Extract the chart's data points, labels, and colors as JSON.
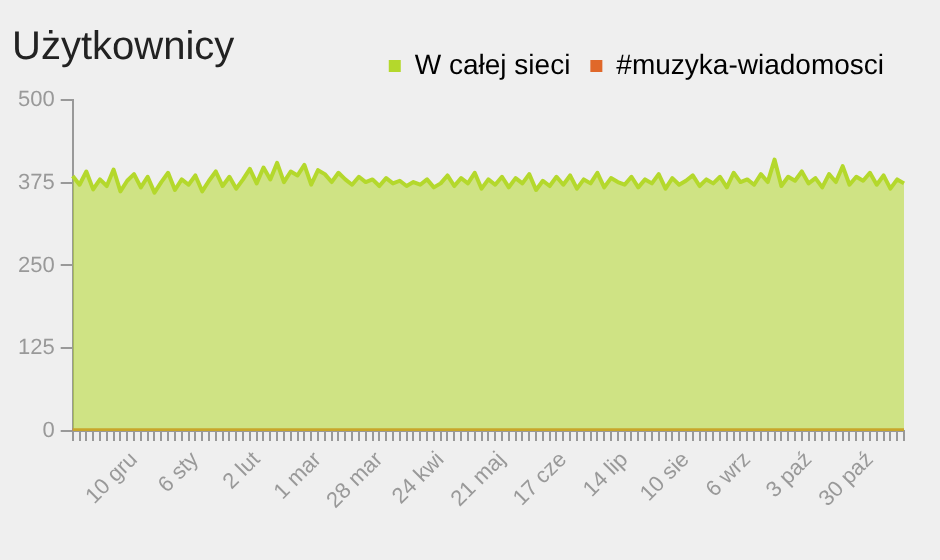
{
  "chart_data": {
    "type": "area",
    "title": "Użytkownicy",
    "categories": [
      null,
      null,
      null,
      null,
      null,
      null,
      null,
      null,
      null,
      "10 gru",
      null,
      null,
      null,
      null,
      null,
      null,
      null,
      null,
      "6 sty",
      null,
      null,
      null,
      null,
      null,
      null,
      null,
      null,
      "2 lut",
      null,
      null,
      null,
      null,
      null,
      null,
      null,
      null,
      "1 mar",
      null,
      null,
      null,
      null,
      null,
      null,
      null,
      null,
      "28 mar",
      null,
      null,
      null,
      null,
      null,
      null,
      null,
      null,
      "24 kwi",
      null,
      null,
      null,
      null,
      null,
      null,
      null,
      null,
      "21 maj",
      null,
      null,
      null,
      null,
      null,
      null,
      null,
      null,
      "17 cze",
      null,
      null,
      null,
      null,
      null,
      null,
      null,
      null,
      "14 lip",
      null,
      null,
      null,
      null,
      null,
      null,
      null,
      null,
      "10 sie",
      null,
      null,
      null,
      null,
      null,
      null,
      null,
      null,
      "6 wrz",
      null,
      null,
      null,
      null,
      null,
      null,
      null,
      null,
      "3 paź",
      null,
      null,
      null,
      null,
      null,
      null,
      null,
      null,
      "30 paź",
      null,
      null,
      null,
      null,
      null
    ],
    "series": [
      {
        "name": "W całej sieci",
        "color": "#b4d82c",
        "values": [
          385,
          372,
          392,
          365,
          380,
          370,
          395,
          362,
          378,
          388,
          368,
          384,
          360,
          376,
          390,
          364,
          380,
          372,
          386,
          362,
          378,
          392,
          370,
          384,
          366,
          380,
          396,
          374,
          398,
          380,
          405,
          376,
          392,
          386,
          402,
          372,
          394,
          388,
          376,
          390,
          380,
          372,
          384,
          376,
          380,
          370,
          382,
          374,
          378,
          370,
          376,
          372,
          380,
          368,
          374,
          386,
          370,
          382,
          374,
          390,
          366,
          380,
          372,
          384,
          368,
          382,
          374,
          388,
          364,
          378,
          370,
          384,
          372,
          386,
          366,
          380,
          374,
          390,
          368,
          382,
          376,
          372,
          384,
          368,
          380,
          374,
          388,
          366,
          382,
          372,
          378,
          386,
          370,
          380,
          374,
          384,
          368,
          390,
          376,
          380,
          372,
          388,
          376,
          410,
          370,
          384,
          378,
          392,
          374,
          382,
          368,
          388,
          376,
          400,
          372,
          384,
          378,
          390,
          372,
          386,
          366,
          380,
          374
        ]
      },
      {
        "name": "#muzyka-wiadomosci",
        "color": "#e0682a",
        "values": [
          1,
          1,
          1,
          1,
          1,
          1,
          1,
          1,
          1,
          1,
          1,
          1,
          1,
          1,
          1,
          1,
          1,
          1,
          1,
          1,
          1,
          1,
          1,
          1,
          1,
          1,
          1,
          1,
          1,
          1,
          1,
          1,
          1,
          1,
          1,
          1,
          1,
          1,
          1,
          1,
          1,
          1,
          1,
          1,
          1,
          1,
          1,
          1,
          1,
          1,
          1,
          1,
          1,
          1,
          1,
          1,
          1,
          1,
          1,
          1,
          1,
          1,
          1,
          1,
          1,
          1,
          1,
          1,
          1,
          1,
          1,
          1,
          1,
          1,
          1,
          1,
          1,
          1,
          1,
          1,
          1,
          1,
          1,
          1,
          1,
          1,
          1,
          1,
          1,
          1,
          1,
          1,
          1,
          1,
          1,
          1,
          1,
          1,
          1,
          1,
          1,
          1,
          1,
          1,
          1,
          1,
          1,
          1,
          1,
          1,
          1,
          1,
          1,
          1,
          1,
          1,
          1,
          1,
          1,
          1,
          1,
          1,
          1
        ]
      }
    ],
    "ylim": [
      0,
      500
    ],
    "yticks": [
      0,
      125,
      250,
      375,
      500
    ],
    "grid": false,
    "legend": "top right",
    "marker": "none"
  }
}
